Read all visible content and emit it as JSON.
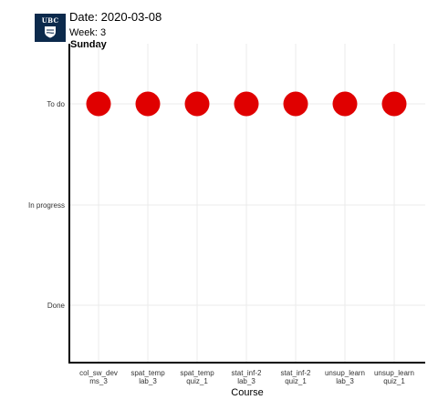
{
  "header": {
    "logo_text": "UBC",
    "date_label": "Date: 2020-03-08",
    "week_label": "Week: 3",
    "day_label": "Sunday"
  },
  "chart_data": {
    "type": "scatter",
    "title": "",
    "xlabel": "Course",
    "ylabel": "",
    "x": [
      "col_sw_dev\nms_3",
      "spat_temp\nlab_3",
      "spat_temp\nquiz_1",
      "stat_inf-2\nlab_3",
      "stat_inf-2\nquiz_1",
      "unsup_learn\nlab_3",
      "unsup_learn\nquiz_1"
    ],
    "y_categories": [
      "Done",
      "In progress",
      "To do"
    ],
    "y": [
      "To do",
      "To do",
      "To do",
      "To do",
      "To do",
      "To do",
      "To do"
    ],
    "grid": true,
    "marker_color": "#e00000"
  },
  "colors": {
    "logo_bg": "#0c2a4c",
    "grid": "#ebebeb",
    "axis": "#000000"
  }
}
